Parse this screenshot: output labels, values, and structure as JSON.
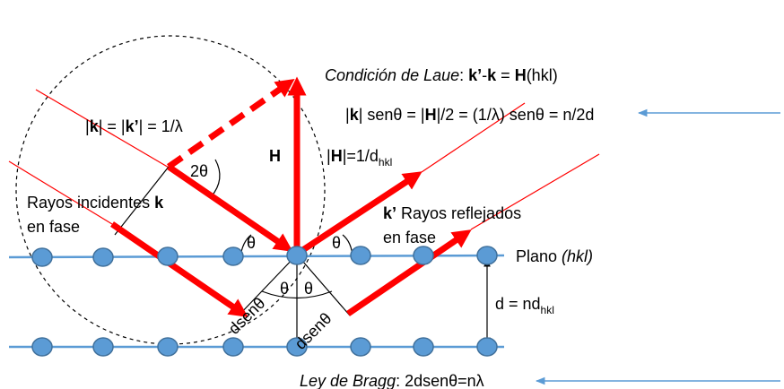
{
  "laue_condition": [
    "Condición de Laue",
    ":  ",
    "k’",
    "-",
    "k",
    " = ",
    "H",
    "(hkl)"
  ],
  "magnitude_relation": [
    "|",
    "k",
    "| = |",
    "k’",
    "| = 1/λ"
  ],
  "bragg_relation": [
    "|",
    "k",
    "| senθ = |",
    "H",
    "|/2 = (1/λ) senθ = n/2d"
  ],
  "h_label": "H",
  "h_magnitude": [
    "|",
    "H",
    "|=1/d",
    "hkl"
  ],
  "angle_2theta": "2θ",
  "incident_label": [
    "Rayos incidentes ",
    "k",
    "en fase"
  ],
  "reflected_label": [
    "k’",
    " Rayos reflejados",
    "en fase"
  ],
  "theta_labels": [
    "θ",
    "θ",
    "θ",
    "θ"
  ],
  "plane_label": [
    "Plano ",
    "(hkl)"
  ],
  "spacing_label": [
    "d = nd",
    "hkl"
  ],
  "path_labels": [
    "dsenθ",
    "dsenθ"
  ],
  "bragg_law": [
    "Ley de Bragg",
    ": 2dsenθ=nλ"
  ]
}
